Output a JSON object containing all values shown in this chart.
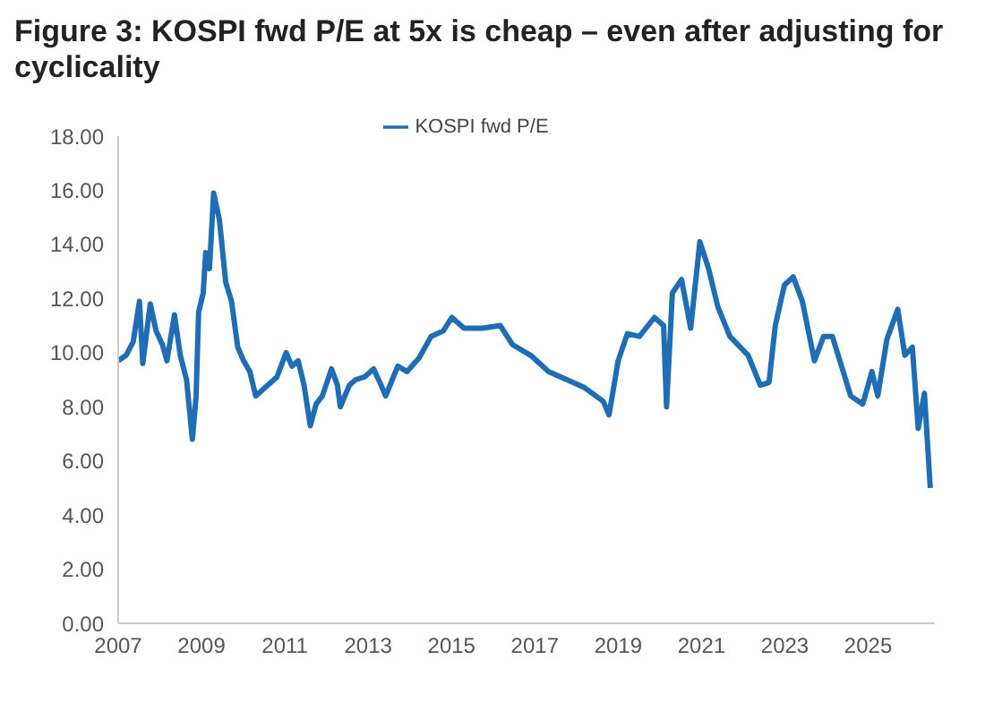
{
  "chart_data": {
    "type": "line",
    "title": "Figure 3: KOSPI fwd P/E at 5x is cheap – even after adjusting for cyclicality",
    "x": [
      2007.0,
      2007.19,
      2007.36,
      2007.51,
      2007.59,
      2007.77,
      2007.91,
      2008.06,
      2008.17,
      2008.35,
      2008.49,
      2008.64,
      2008.71,
      2008.78,
      2008.87,
      2008.93,
      2009.04,
      2009.1,
      2009.19,
      2009.29,
      2009.43,
      2009.58,
      2009.72,
      2009.87,
      2010.01,
      2010.16,
      2010.3,
      2010.52,
      2010.81,
      2011.03,
      2011.17,
      2011.32,
      2011.46,
      2011.61,
      2011.75,
      2011.9,
      2012.12,
      2012.26,
      2012.33,
      2012.55,
      2012.7,
      2012.91,
      2013.13,
      2013.28,
      2013.42,
      2013.71,
      2013.93,
      2014.22,
      2014.51,
      2014.8,
      2015.01,
      2015.3,
      2015.74,
      2016.17,
      2016.46,
      2016.9,
      2017.33,
      2017.77,
      2018.2,
      2018.64,
      2018.78,
      2019.0,
      2019.22,
      2019.51,
      2019.87,
      2020.09,
      2020.16,
      2020.3,
      2020.52,
      2020.74,
      2020.96,
      2021.17,
      2021.39,
      2021.68,
      2022.12,
      2022.41,
      2022.62,
      2022.77,
      2022.99,
      2023.2,
      2023.42,
      2023.71,
      2023.93,
      2024.14,
      2024.36,
      2024.58,
      2024.87,
      2025.09,
      2025.23,
      2025.45,
      2025.71,
      2025.88,
      2026.06,
      2026.2,
      2026.35,
      2026.49
    ],
    "series": [
      {
        "name": "KOSPI fwd P/E",
        "color": "#1f6db5",
        "values": [
          9.7,
          9.9,
          10.4,
          11.9,
          9.6,
          11.8,
          10.8,
          10.3,
          9.7,
          11.4,
          9.9,
          9.0,
          7.9,
          6.8,
          8.4,
          11.5,
          12.2,
          13.7,
          13.1,
          15.9,
          14.9,
          12.6,
          11.9,
          10.2,
          9.7,
          9.3,
          8.4,
          8.7,
          9.1,
          10.0,
          9.5,
          9.7,
          8.8,
          7.3,
          8.1,
          8.4,
          9.4,
          8.8,
          8.0,
          8.8,
          9.0,
          9.1,
          9.4,
          8.9,
          8.4,
          9.5,
          9.3,
          9.8,
          10.6,
          10.8,
          11.3,
          10.9,
          10.9,
          11.0,
          10.3,
          9.9,
          9.3,
          9.0,
          8.7,
          8.2,
          7.7,
          9.7,
          10.7,
          10.6,
          11.3,
          11.0,
          8.0,
          12.2,
          12.7,
          10.9,
          14.1,
          13.1,
          11.7,
          10.6,
          9.9,
          8.8,
          8.9,
          11.0,
          12.5,
          12.8,
          11.9,
          9.7,
          10.6,
          10.6,
          9.5,
          8.4,
          8.1,
          9.3,
          8.4,
          10.5,
          11.6,
          9.9,
          10.2,
          7.2,
          8.5,
          5.0
        ]
      }
    ],
    "xlim": [
      2007,
      2026.6
    ],
    "xticks": [
      2007,
      2009,
      2011,
      2013,
      2015,
      2017,
      2019,
      2021,
      2023,
      2025
    ],
    "ylim": [
      0,
      18
    ],
    "yticks": [
      {
        "value": 0,
        "label": "0.00"
      },
      {
        "value": 2,
        "label": "2.00"
      },
      {
        "value": 4,
        "label": "4.00"
      },
      {
        "value": 6,
        "label": "6.00"
      },
      {
        "value": 8,
        "label": "8.00"
      },
      {
        "value": 10,
        "label": "10.00"
      },
      {
        "value": 12,
        "label": "12.00"
      },
      {
        "value": 14,
        "label": "14.00"
      },
      {
        "value": 16,
        "label": "16.00"
      },
      {
        "value": 18,
        "label": "18.00"
      }
    ],
    "grid": false,
    "legend": "top",
    "marker": "none",
    "line_style": "solid"
  }
}
